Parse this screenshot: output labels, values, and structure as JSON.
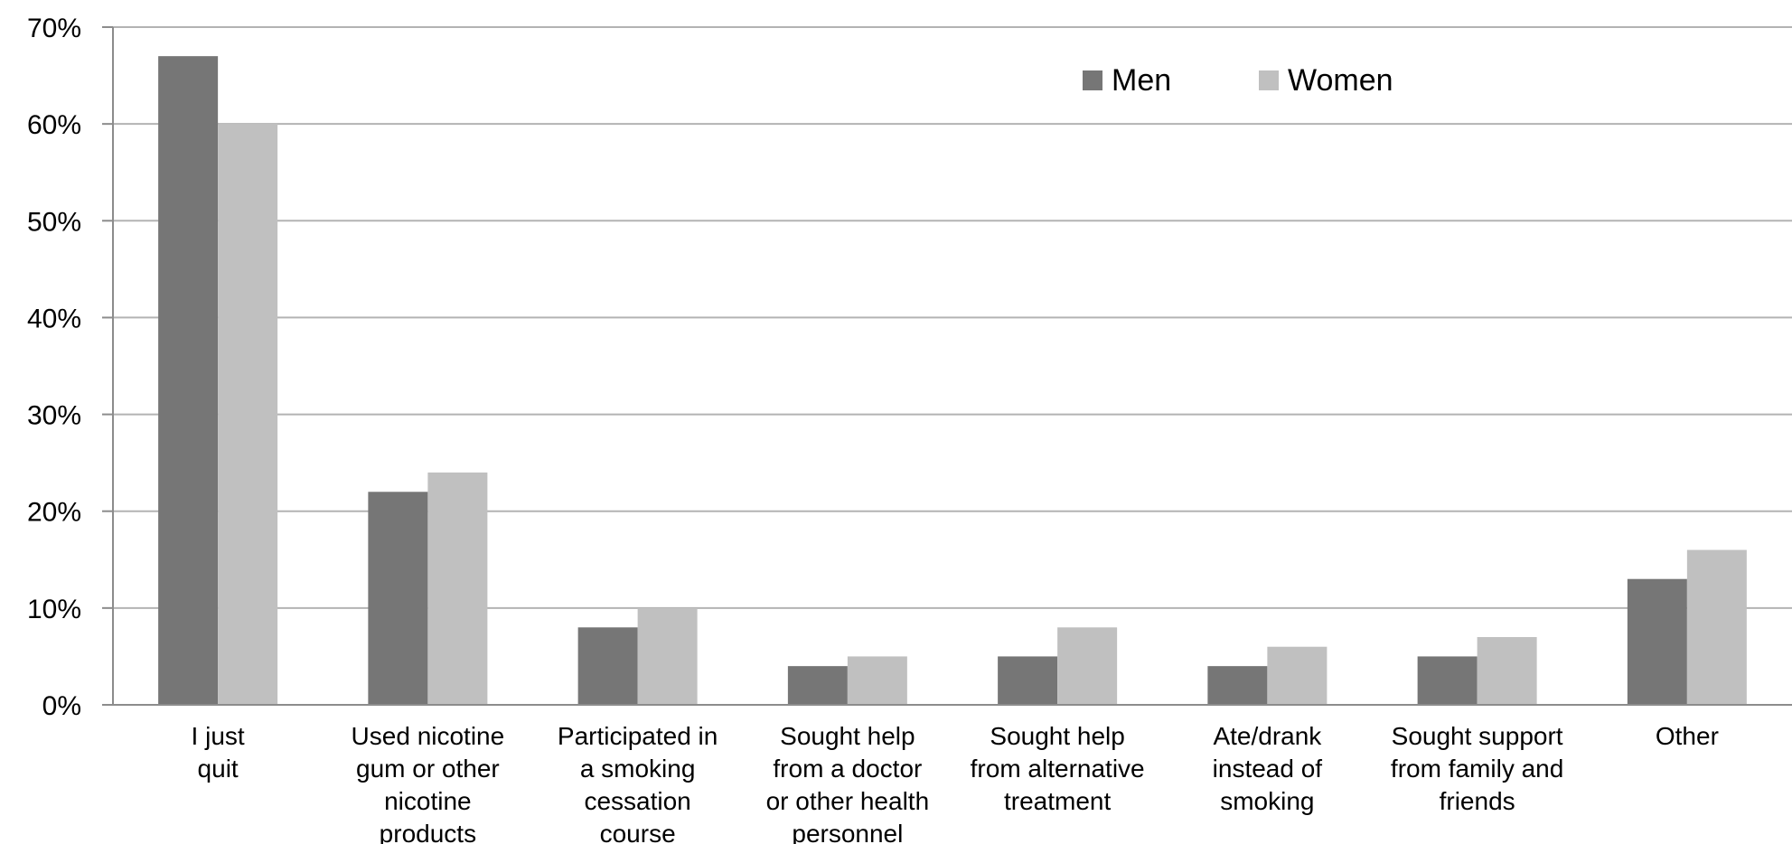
{
  "chart_data": {
    "type": "bar",
    "title": "",
    "xlabel": "",
    "ylabel": "",
    "ylim": [
      0,
      70
    ],
    "yticks": [
      "0%",
      "10%",
      "20%",
      "30%",
      "40%",
      "50%",
      "60%",
      "70%"
    ],
    "grid": true,
    "legend_position": "top-center",
    "categories": [
      [
        "I just",
        "quit"
      ],
      [
        "Used nicotine",
        "gum or other",
        "nicotine",
        "products"
      ],
      [
        "Participated in",
        "a smoking",
        "cessation",
        "course"
      ],
      [
        "Sought help",
        "from a doctor",
        "or other health",
        "personnel"
      ],
      [
        "Sought help",
        "from alternative",
        "treatment"
      ],
      [
        "Ate/drank",
        "instead of",
        "smoking"
      ],
      [
        "Sought support",
        "from family and",
        "friends"
      ],
      [
        "Other"
      ]
    ],
    "series": [
      {
        "name": "Men",
        "color": "#767676",
        "values": [
          67,
          22,
          8,
          4,
          5,
          4,
          5,
          13
        ]
      },
      {
        "name": "Women",
        "color": "#c0c0c0",
        "values": [
          60,
          24,
          10,
          5,
          8,
          6,
          7,
          16
        ]
      }
    ]
  }
}
